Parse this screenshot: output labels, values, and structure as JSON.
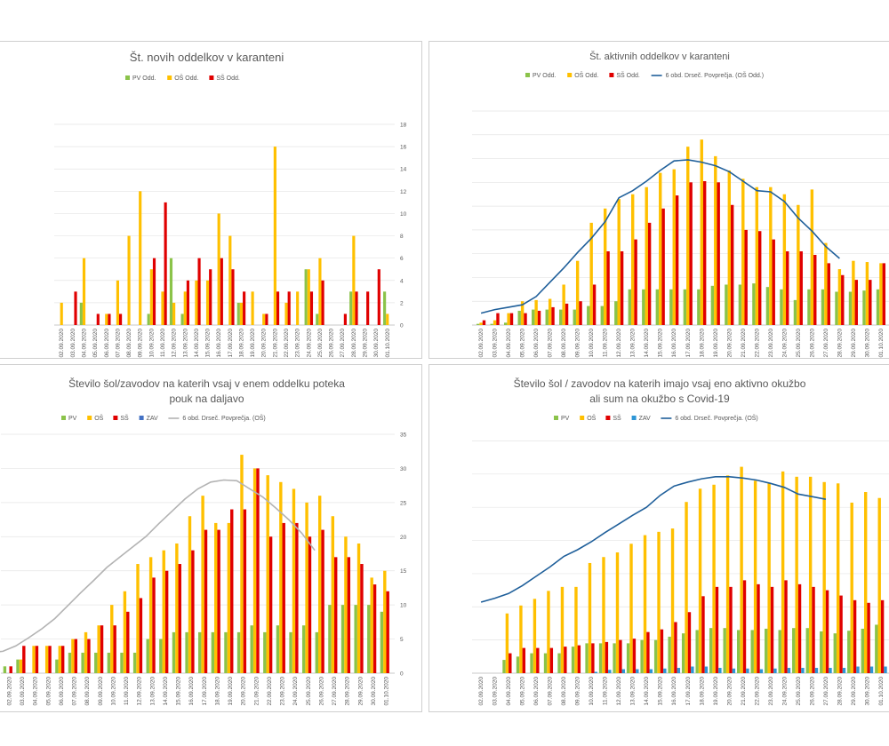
{
  "dates": [
    "02.09.2020",
    "03.09.2020",
    "04.09.2020",
    "05.09.2020",
    "06.09.2020",
    "07.09.2020",
    "08.09.2020",
    "09.09.2020",
    "10.09.2020",
    "11.09.2020",
    "12.09.2020",
    "13.09.2020",
    "14.09.2020",
    "15.09.2020",
    "16.09.2020",
    "17.09.2020",
    "18.09.2020",
    "19.09.2020",
    "20.09.2020",
    "21.09.2020",
    "22.09.2020",
    "23.09.2020",
    "24.09.2020",
    "25.09.2020",
    "26.09.2020",
    "27.09.2020",
    "28.09.2020",
    "29.09.2020",
    "30.09.2020",
    "01.10.2020"
  ],
  "chart_data": [
    {
      "type": "bar",
      "title": "Št. novih oddelkov v karanteni",
      "categories_ref": "dates",
      "ylim": [
        0,
        18
      ],
      "yticks": [
        0,
        2,
        4,
        6,
        8,
        10,
        12,
        14,
        16,
        18
      ],
      "grid": true,
      "legend_position": "top",
      "series": [
        {
          "name": "PV Odd.",
          "color": "#8bc34a",
          "values": [
            0,
            0,
            2,
            0,
            0,
            0,
            0,
            0,
            1,
            0,
            6,
            1,
            0,
            0,
            0,
            0,
            2,
            0,
            0,
            0,
            0,
            0,
            5,
            1,
            0,
            0,
            3,
            0,
            0,
            3
          ]
        },
        {
          "name": "OŠ Odd.",
          "color": "#ffc000",
          "values": [
            2,
            0,
            6,
            0,
            1,
            4,
            8,
            12,
            5,
            3,
            2,
            3,
            4,
            4,
            10,
            8,
            2,
            3,
            1,
            16,
            2,
            3,
            5,
            6,
            0,
            0,
            8,
            0,
            0,
            1
          ]
        },
        {
          "name": "SŠ Odd.",
          "color": "#e00000",
          "values": [
            0,
            3,
            0,
            1,
            1,
            1,
            0,
            0,
            6,
            11,
            0,
            4,
            6,
            5,
            6,
            5,
            3,
            0,
            1,
            3,
            3,
            0,
            3,
            4,
            0,
            1,
            3,
            3,
            5,
            0
          ]
        }
      ]
    },
    {
      "type": "bar",
      "title": "Št. aktivnih oddelkov v karanteni",
      "categories_ref": "dates",
      "ylim": [
        0,
        18
      ],
      "grid": true,
      "legend_position": "top",
      "series": [
        {
          "name": "PV Odd.",
          "color": "#8bc34a",
          "values": [
            0.1,
            0.1,
            0.2,
            1.2,
            1.3,
            1.3,
            1.3,
            1.3,
            1.6,
            1.6,
            2,
            3,
            3,
            3,
            3,
            3,
            3,
            3.3,
            3.4,
            3.4,
            3.5,
            3.2,
            3,
            2.1,
            3,
            3,
            2.8,
            2.8,
            2.9,
            3
          ]
        },
        {
          "name": "OŠ Odd.",
          "color": "#ffc000",
          "values": [
            0.2,
            0.4,
            1,
            2,
            2.1,
            2.2,
            3.4,
            5.4,
            8.6,
            9.8,
            10.6,
            11,
            11.6,
            12.8,
            13.1,
            15,
            15.6,
            14.2,
            13,
            12.3,
            11.6,
            11.6,
            11,
            10.1,
            11.4,
            6.9,
            4.7,
            5.4,
            5.3,
            5.2
          ]
        },
        {
          "name": "SŠ Odd.",
          "color": "#e00000",
          "values": [
            0.4,
            1,
            1,
            1,
            1.2,
            1.5,
            1.8,
            2,
            3.4,
            6.2,
            6.2,
            7.2,
            8.6,
            9.8,
            10.9,
            12,
            12.1,
            12,
            10.1,
            8,
            7.9,
            7.2,
            6.2,
            6.2,
            5.9,
            5.2,
            4.2,
            3.8,
            3.8,
            5.2
          ]
        },
        {
          "name": "6 obd. Drseč. Povprečja. (OŠ Odd.)",
          "color": "#1f5f9a",
          "type": "line",
          "values": [
            1,
            1.3,
            1.5,
            1.7,
            2.4,
            3.6,
            4.8,
            6.1,
            7.3,
            8.7,
            10.7,
            11.3,
            12.1,
            13,
            13.8,
            13.9,
            13.7,
            13.4,
            12.9,
            12.1,
            11.3,
            11.2,
            10.4,
            9,
            7.9,
            6.6,
            5.6
          ]
        }
      ]
    },
    {
      "type": "bar",
      "title_lines": [
        "Število šol/zavodov na katerih vsaj v enem oddelku poteka",
        "pouk na daljavo"
      ],
      "categories_ref": "dates",
      "ylim": [
        0,
        35
      ],
      "yticks": [
        0,
        5,
        10,
        15,
        20,
        25,
        30,
        35
      ],
      "grid": true,
      "legend_position": "top",
      "series": [
        {
          "name": "PV",
          "color": "#8bc34a",
          "values": [
            1,
            2,
            0,
            0,
            2,
            3,
            3,
            3,
            3,
            3,
            3,
            5,
            5,
            6,
            6,
            6,
            6,
            6,
            6,
            7,
            6,
            7,
            6,
            7,
            6,
            10,
            10,
            10,
            10,
            9
          ]
        },
        {
          "name": "OŠ",
          "color": "#ffc000",
          "values": [
            0,
            2,
            4,
            4,
            4,
            5,
            6,
            7,
            10,
            12,
            16,
            17,
            18,
            19,
            23,
            26,
            22,
            22,
            32,
            30,
            29,
            28,
            27,
            25,
            26,
            23,
            20,
            19,
            14,
            15
          ]
        },
        {
          "name": "SŠ",
          "color": "#e00000",
          "values": [
            1,
            4,
            4,
            4,
            4,
            5,
            5,
            7,
            7,
            9,
            11,
            14,
            15,
            16,
            18,
            21,
            21,
            24,
            24,
            30,
            20,
            22,
            22,
            20,
            21,
            17,
            17,
            16,
            13,
            12
          ]
        },
        {
          "name": "ZAV",
          "color": "#4472c4",
          "values": [
            0,
            0,
            0,
            0,
            0,
            0,
            0,
            0,
            0,
            0,
            0,
            0,
            0,
            0,
            0,
            0,
            0,
            0,
            0,
            0,
            0,
            0,
            0,
            0,
            0,
            0,
            0,
            0,
            0,
            0
          ]
        },
        {
          "name": "6 obd. Drseč. Povprečja. (OŠ)",
          "color": "#b3b3b3",
          "type": "line",
          "values": [
            3,
            3.2,
            4,
            5.2,
            6.5,
            8,
            9.9,
            11.8,
            13.6,
            15.5,
            17,
            18.5,
            20,
            21.9,
            23.7,
            25.5,
            27,
            28,
            28.3,
            28.2,
            27,
            25.8,
            24.2,
            22.5,
            20.5,
            18
          ]
        }
      ]
    },
    {
      "type": "bar",
      "title_lines": [
        "Število šol / zavodov na katerih imajo vsaj eno aktivno okužbo",
        "ali sum na okužbo s Covid-19"
      ],
      "categories_ref": "dates",
      "ylim": [
        0,
        36
      ],
      "grid": true,
      "legend_position": "top",
      "series": [
        {
          "name": "PV",
          "color": "#8bc34a",
          "values": [
            0,
            0,
            2,
            2.5,
            3,
            3,
            3,
            4,
            4.5,
            4.5,
            4.5,
            4.5,
            5,
            5,
            5.5,
            6,
            6.5,
            6.8,
            6.8,
            6.5,
            6.5,
            6.7,
            6.5,
            6.8,
            6.8,
            6.3,
            6,
            6.4,
            6.7,
            7.3
          ]
        },
        {
          "name": "OŠ",
          "color": "#ffc000",
          "values": [
            0,
            0,
            9,
            10.2,
            11.2,
            12.4,
            13,
            13,
            16.6,
            17.5,
            18.2,
            19.5,
            20.8,
            21.3,
            21.8,
            25.8,
            27.8,
            28.4,
            29.8,
            31.1,
            29,
            28.6,
            30.4,
            29.6,
            29.6,
            28.8,
            28.6,
            25.7,
            27.3,
            26.4
          ]
        },
        {
          "name": "SŠ",
          "color": "#e00000",
          "values": [
            0,
            0,
            3,
            3.8,
            3.8,
            3.8,
            4,
            4.2,
            4.5,
            4.7,
            5,
            5.2,
            6.2,
            6.6,
            7.7,
            9.2,
            11.6,
            13,
            13,
            14,
            13.4,
            13,
            14,
            13.4,
            13,
            12.5,
            11.7,
            11,
            10.6,
            11
          ]
        },
        {
          "name": "ZAV",
          "color": "#2e96d6",
          "values": [
            0,
            0,
            0,
            0,
            0,
            0,
            0,
            0,
            0.2,
            0.5,
            0.6,
            0.6,
            0.6,
            0.7,
            0.8,
            1,
            1,
            0.8,
            0.7,
            0.7,
            0.6,
            0.7,
            0.8,
            0.8,
            0.8,
            0.8,
            0.8,
            1,
            1,
            1
          ]
        },
        {
          "name": "6 obd. Drseč. Povprečja. (OŠ)",
          "color": "#1f5f9a",
          "type": "line",
          "values": [
            10.7,
            11.3,
            12,
            13.2,
            14.6,
            16,
            17.6,
            18.6,
            19.8,
            21.2,
            22.5,
            23.8,
            25,
            26.8,
            28.2,
            28.8,
            29.3,
            29.6,
            29.6,
            29.4,
            29.1,
            28.6,
            28,
            27,
            26.6,
            26.2
          ]
        }
      ]
    }
  ]
}
